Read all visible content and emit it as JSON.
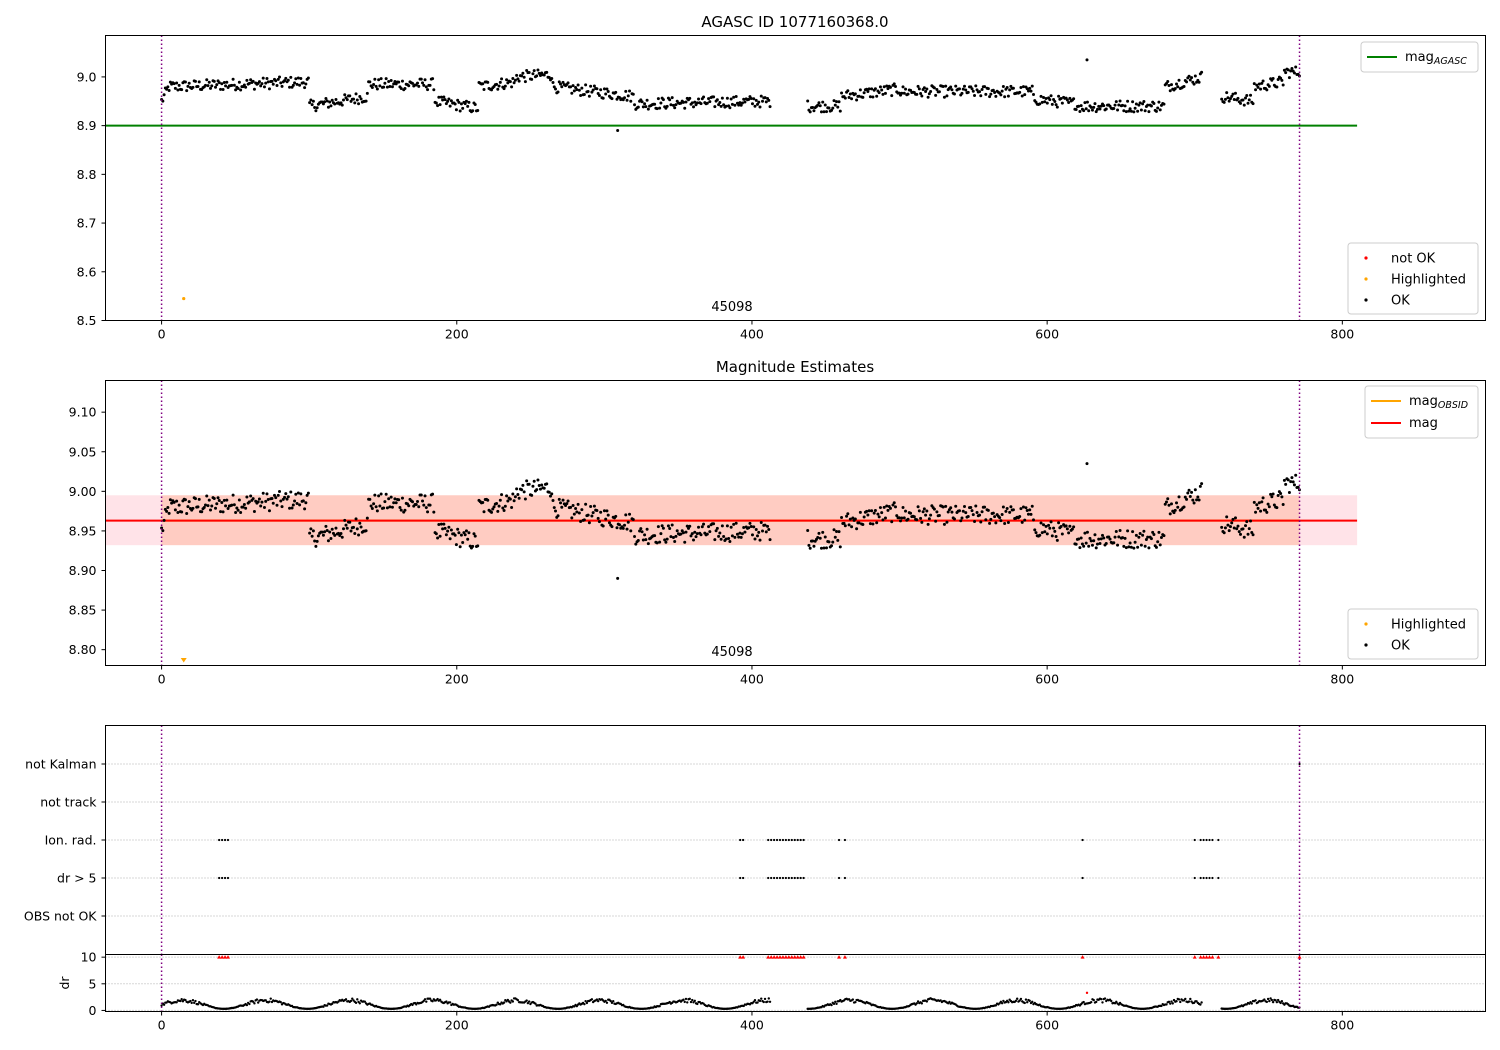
{
  "chart_data": [
    {
      "type": "scatter",
      "title": "AGASC ID 1077160368.0",
      "xlabel": "",
      "ylabel": "",
      "xlim": [
        -38,
        897
      ],
      "ylim": [
        8.5,
        9.085
      ],
      "x_ticks": [
        0,
        200,
        400,
        600,
        800
      ],
      "y_ticks": [
        8.5,
        8.6,
        8.7,
        8.8,
        8.9,
        9.0
      ],
      "grid": false,
      "legend_position": "top-right",
      "lines": [
        {
          "name": "mag_AGASC",
          "label": "mag",
          "subscript": "AGASC",
          "color": "#008000",
          "x": [
            -38,
            810
          ],
          "y": [
            8.9,
            8.9
          ]
        }
      ],
      "vlines": {
        "x": [
          0,
          771
        ],
        "color": "#800080",
        "style": "dotted"
      },
      "scatter_legend_position": "bottom-right",
      "scatter_legend": [
        {
          "name": "not OK",
          "color": "#ff0000"
        },
        {
          "name": "Highlighted",
          "color": "#ffa500"
        },
        {
          "name": "OK",
          "color": "#000000"
        }
      ],
      "highlighted_points": [
        {
          "x": 15,
          "y": 8.545
        }
      ],
      "outlier_points": [
        {
          "x": 309,
          "y": 8.89
        },
        {
          "x": 627,
          "y": 9.035
        }
      ],
      "ok_series": {
        "x_range": [
          0,
          771
        ],
        "gaps": [
          [
            413,
            437
          ],
          [
            705,
            718
          ]
        ],
        "segments": [
          {
            "x": [
              0,
              5
            ],
            "y": [
              8.95,
              8.98
            ]
          },
          {
            "x": [
              5,
              100
            ],
            "y": [
              8.98,
              8.99
            ]
          },
          {
            "x": [
              100,
              140
            ],
            "y": [
              8.94,
              8.96
            ]
          },
          {
            "x": [
              140,
              185
            ],
            "y": [
              8.985,
              8.985
            ]
          },
          {
            "x": [
              185,
              215
            ],
            "y": [
              8.95,
              8.935
            ]
          },
          {
            "x": [
              215,
              240
            ],
            "y": [
              8.98,
              8.99
            ]
          },
          {
            "x": [
              240,
              265
            ],
            "y": [
              9.0,
              9.005
            ]
          },
          {
            "x": [
              265,
              320
            ],
            "y": [
              8.98,
              8.96
            ]
          },
          {
            "x": [
              320,
              413
            ],
            "y": [
              8.945,
              8.95
            ]
          },
          {
            "x": [
              437,
              460
            ],
            "y": [
              8.94,
              8.94
            ]
          },
          {
            "x": [
              460,
              500
            ],
            "y": [
              8.96,
              8.975
            ]
          },
          {
            "x": [
              500,
              590
            ],
            "y": [
              8.97,
              8.97
            ]
          },
          {
            "x": [
              590,
              620
            ],
            "y": [
              8.955,
              8.945
            ]
          },
          {
            "x": [
              620,
              680
            ],
            "y": [
              8.94,
              8.94
            ]
          },
          {
            "x": [
              680,
              705
            ],
            "y": [
              8.98,
              9.0
            ]
          },
          {
            "x": [
              718,
              740
            ],
            "y": [
              8.96,
              8.95
            ]
          },
          {
            "x": [
              740,
              760
            ],
            "y": [
              8.98,
              8.99
            ]
          },
          {
            "x": [
              760,
              771
            ],
            "y": [
              9.01,
              9.01
            ]
          }
        ]
      },
      "annotation": "45098",
      "annotation_x": 384
    },
    {
      "type": "scatter",
      "title": "Magnitude Estimates",
      "xlabel": "",
      "ylabel": "",
      "xlim": [
        -38,
        897
      ],
      "ylim": [
        8.78,
        9.14
      ],
      "x_ticks": [
        0,
        200,
        400,
        600,
        800
      ],
      "y_ticks": [
        8.8,
        8.85,
        8.9,
        8.95,
        9.0,
        9.05,
        9.1
      ],
      "y_tick_labels": [
        "8.80",
        "8.85",
        "8.90",
        "8.95",
        "9.00",
        "9.05",
        "9.10"
      ],
      "grid": false,
      "legend_position": "top-right",
      "lines": [
        {
          "name": "mag_OBSID",
          "label": "mag",
          "subscript": "OBSID",
          "color": "#ffa500",
          "x": [
            0,
            771
          ],
          "y": [
            8.963,
            8.963
          ]
        },
        {
          "name": "mag",
          "label": "mag",
          "color": "#ff0000",
          "x": [
            -38,
            810
          ],
          "y": [
            8.963,
            8.963
          ]
        }
      ],
      "bands": [
        {
          "x": [
            -38,
            810
          ],
          "y": [
            8.932,
            8.995
          ],
          "color": "#ffc0cb",
          "opacity": 0.45
        },
        {
          "x": [
            0,
            771
          ],
          "y": [
            8.932,
            8.995
          ],
          "color": "#ffa07a",
          "opacity": 0.35
        }
      ],
      "vlines": {
        "x": [
          0,
          771
        ],
        "color": "#800080",
        "style": "dotted"
      },
      "scatter_legend_position": "bottom-right",
      "scatter_legend": [
        {
          "name": "Highlighted",
          "color": "#ffa500"
        },
        {
          "name": "OK",
          "color": "#000000"
        }
      ],
      "highlighted_points": [
        {
          "x": 15,
          "y": 8.787
        }
      ],
      "outlier_points": [
        {
          "x": 309,
          "y": 8.89
        },
        {
          "x": 627,
          "y": 9.035
        }
      ],
      "annotation": "45098",
      "annotation_x": 384
    },
    {
      "type": "scatter",
      "title": "",
      "xlim": [
        -38,
        897
      ],
      "x_ticks": [
        0,
        200,
        400,
        600,
        800
      ],
      "y_tick_labels": [
        "not Kalman",
        "not track",
        "Ion. rad.",
        "dr > 5",
        "OBS not OK"
      ],
      "grid": true,
      "vlines": {
        "x": [
          0,
          771
        ],
        "color": "#800080",
        "style": "dotted"
      },
      "flags": {
        "not Kalman": {
          "x": [
            771
          ]
        },
        "not track": {
          "x": []
        },
        "Ion. rad.": {
          "x": [
            39,
            41,
            43,
            45,
            392,
            394,
            411,
            413,
            415,
            417,
            419,
            421,
            423,
            425,
            427,
            429,
            431,
            433,
            435,
            459,
            463,
            624,
            700,
            704,
            706,
            708,
            710,
            712,
            716
          ]
        },
        "dr > 5": {
          "x": [
            39,
            41,
            43,
            45,
            392,
            394,
            411,
            413,
            415,
            417,
            419,
            421,
            423,
            425,
            427,
            429,
            431,
            433,
            435,
            459,
            463,
            624,
            700,
            704,
            706,
            708,
            710,
            712,
            716
          ]
        },
        "OBS not OK": {
          "x": []
        }
      }
    },
    {
      "type": "scatter",
      "title": "",
      "xlabel": "",
      "ylabel": "dr",
      "xlim": [
        -38,
        897
      ],
      "ylim": [
        -0.2,
        10.5
      ],
      "x_ticks": [
        0,
        200,
        400,
        600,
        800
      ],
      "y_ticks": [
        0,
        5,
        10
      ],
      "grid": true,
      "vlines": {
        "x": [
          0,
          771
        ],
        "color": "#800080",
        "style": "dotted"
      },
      "capped_points": {
        "y": 10,
        "color": "#ff0000",
        "x": [
          39,
          41,
          43,
          45,
          392,
          394,
          411,
          413,
          415,
          417,
          419,
          421,
          423,
          425,
          427,
          429,
          431,
          433,
          435,
          459,
          463,
          624,
          700,
          704,
          706,
          708,
          710,
          712,
          716,
          771
        ]
      },
      "outlier_points": [
        {
          "x": 627,
          "y": 3.3,
          "color": "#ff0000"
        }
      ],
      "ok_series_y_range": [
        0.3,
        2.3
      ]
    }
  ]
}
